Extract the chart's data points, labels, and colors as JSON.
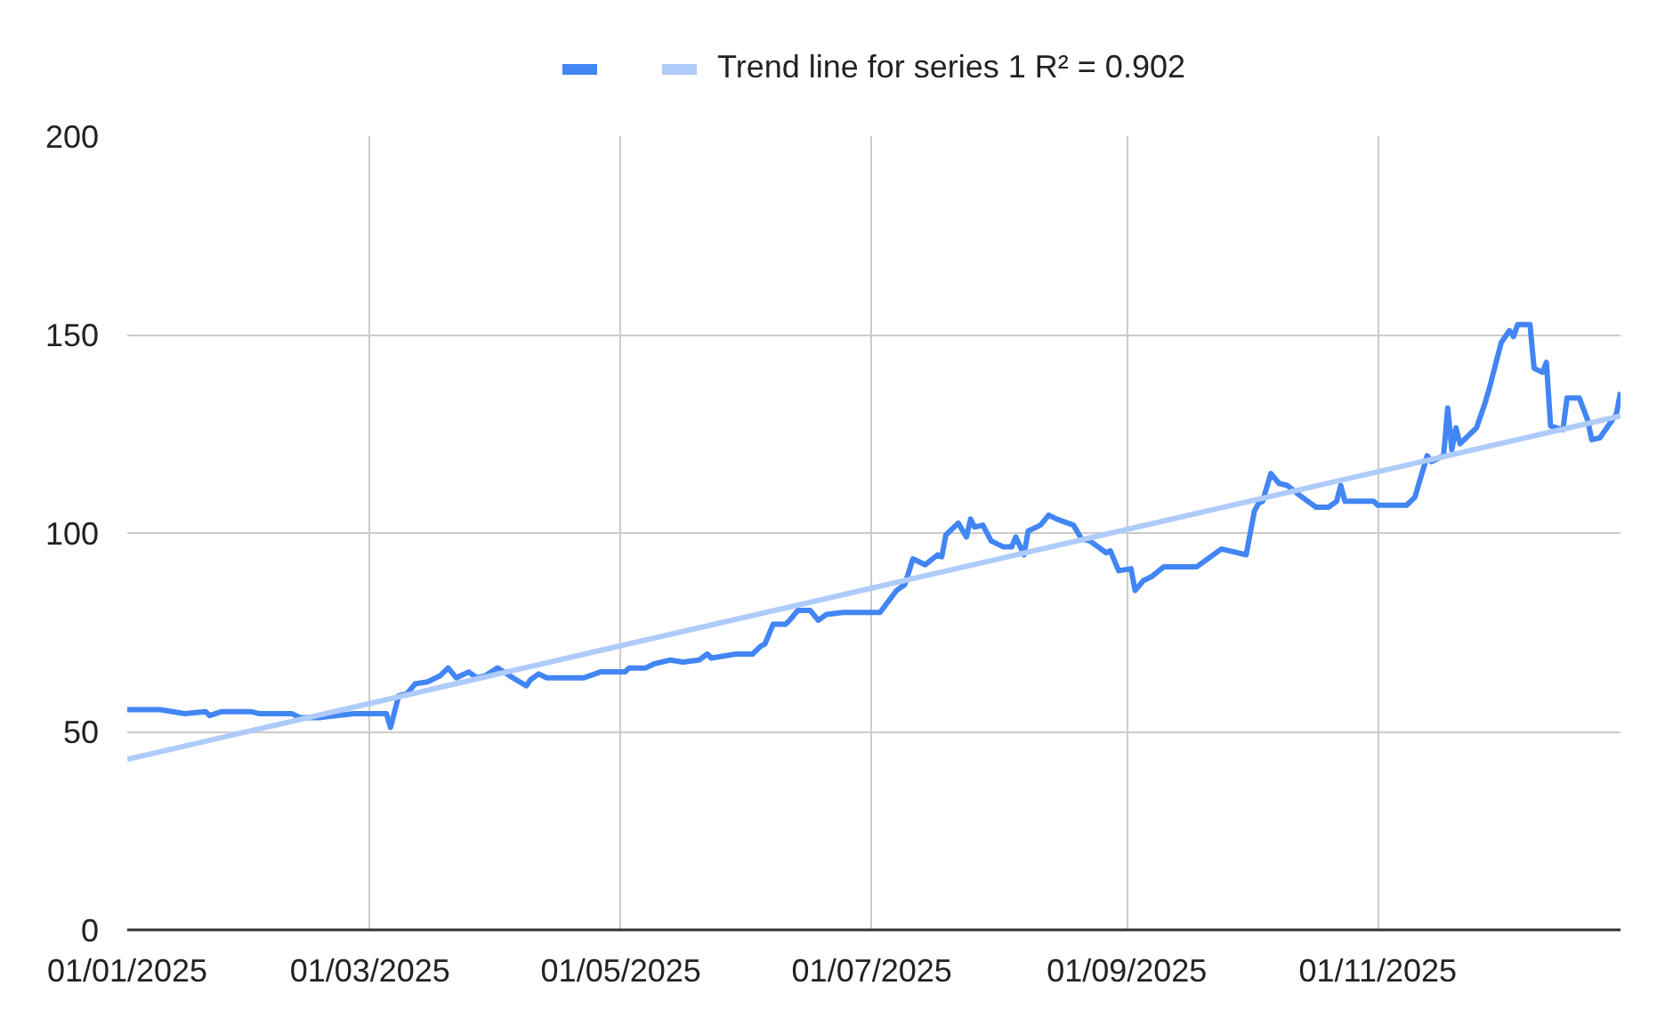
{
  "chart_data": {
    "type": "line",
    "grid": true,
    "legend": "top",
    "line_style": "solid",
    "xlim": [
      "2025-01-01",
      "2025-12-30"
    ],
    "xticks": [
      {
        "value": "2025-01-01",
        "label": "01/01/2025"
      },
      {
        "value": "2025-03-01",
        "label": "01/03/2025"
      },
      {
        "value": "2025-05-01",
        "label": "01/05/2025"
      },
      {
        "value": "2025-07-01",
        "label": "01/07/2025"
      },
      {
        "value": "2025-09-01",
        "label": "01/09/2025"
      },
      {
        "value": "2025-11-01",
        "label": "01/11/2025"
      }
    ],
    "ylim": [
      0,
      200
    ],
    "yticks": [
      0,
      50,
      100,
      150,
      200
    ],
    "x": [
      "2025-01-01",
      "2025-01-09",
      "2025-01-15",
      "2025-01-20",
      "2025-01-21",
      "2025-01-24",
      "2025-01-31",
      "2025-02-02",
      "2025-02-10",
      "2025-02-12",
      "2025-02-17",
      "2025-02-25",
      "2025-03-05",
      "2025-03-06",
      "2025-03-08",
      "2025-03-10",
      "2025-03-12",
      "2025-03-15",
      "2025-03-18",
      "2025-03-20",
      "2025-03-22",
      "2025-03-25",
      "2025-03-27",
      "2025-03-29",
      "2025-04-01",
      "2025-04-04",
      "2025-04-08",
      "2025-04-09",
      "2025-04-11",
      "2025-04-13",
      "2025-04-22",
      "2025-04-26",
      "2025-05-02",
      "2025-05-03",
      "2025-05-07",
      "2025-05-09",
      "2025-05-13",
      "2025-05-16",
      "2025-05-20",
      "2025-05-22",
      "2025-05-23",
      "2025-05-29",
      "2025-06-02",
      "2025-06-04",
      "2025-06-05",
      "2025-06-07",
      "2025-06-10",
      "2025-06-11",
      "2025-06-13",
      "2025-06-16",
      "2025-06-18",
      "2025-06-20",
      "2025-06-24",
      "2025-07-03",
      "2025-07-07",
      "2025-07-09",
      "2025-07-11",
      "2025-07-14",
      "2025-07-17",
      "2025-07-18",
      "2025-07-19",
      "2025-07-22",
      "2025-07-24",
      "2025-07-25",
      "2025-07-26",
      "2025-07-28",
      "2025-07-30",
      "2025-08-02",
      "2025-08-04",
      "2025-08-05",
      "2025-08-07",
      "2025-08-08",
      "2025-08-11",
      "2025-08-13",
      "2025-08-15",
      "2025-08-19",
      "2025-08-21",
      "2025-08-23",
      "2025-08-27",
      "2025-08-28",
      "2025-08-30",
      "2025-09-02",
      "2025-09-03",
      "2025-09-05",
      "2025-09-07",
      "2025-09-10",
      "2025-09-18",
      "2025-09-24",
      "2025-09-30",
      "2025-10-02",
      "2025-10-03",
      "2025-10-04",
      "2025-10-06",
      "2025-10-08",
      "2025-10-10",
      "2025-10-13",
      "2025-10-15",
      "2025-10-17",
      "2025-10-20",
      "2025-10-22",
      "2025-10-23",
      "2025-10-24",
      "2025-10-31",
      "2025-11-01",
      "2025-11-08",
      "2025-11-10",
      "2025-11-13",
      "2025-11-14",
      "2025-11-17",
      "2025-11-18",
      "2025-11-19",
      "2025-11-20",
      "2025-11-21",
      "2025-11-24",
      "2025-11-25",
      "2025-11-27",
      "2025-11-28",
      "2025-12-01",
      "2025-12-03",
      "2025-12-04",
      "2025-12-05",
      "2025-12-08",
      "2025-12-09",
      "2025-12-11",
      "2025-12-12",
      "2025-12-13",
      "2025-12-16",
      "2025-12-17",
      "2025-12-20",
      "2025-12-22",
      "2025-12-23",
      "2025-12-25",
      "2025-12-29",
      "2025-12-30"
    ],
    "series": [
      {
        "color": "#4285f4",
        "values": [
          55.5,
          55.5,
          54.5,
          55,
          54,
          55,
          55,
          54.5,
          54.5,
          53.5,
          53.5,
          54.5,
          54.5,
          51,
          59,
          59.5,
          62,
          62.5,
          64,
          66,
          63.5,
          65,
          63.5,
          64,
          66,
          64,
          61.5,
          63,
          64.5,
          63.5,
          63.5,
          65,
          65,
          66,
          66,
          67,
          68,
          67.5,
          68,
          69.5,
          68.5,
          69.5,
          69.5,
          71.5,
          72,
          77,
          77,
          78,
          80.5,
          80.5,
          78,
          79.5,
          80,
          80,
          85.5,
          87,
          93.5,
          92,
          94.5,
          94,
          99.5,
          102.5,
          99,
          103.5,
          101.5,
          102,
          98,
          96.5,
          96.5,
          99,
          94.5,
          100.5,
          102,
          104.5,
          103.5,
          102,
          98.5,
          98,
          95,
          95.5,
          90.5,
          91,
          85.5,
          88,
          89,
          91.5,
          91.5,
          96,
          94.5,
          105.5,
          107.5,
          108,
          115,
          112.5,
          112,
          109.5,
          108,
          106.5,
          106.5,
          108,
          112,
          108,
          108,
          107,
          107,
          109,
          119.5,
          118,
          119.5,
          131.5,
          121,
          126.5,
          122.5,
          125.5,
          126.5,
          132.5,
          136,
          148,
          151,
          149.5,
          152.5,
          152.5,
          141.5,
          140.5,
          143,
          127,
          126,
          134,
          134,
          128.5,
          123.5,
          124,
          130,
          135.5
        ]
      },
      {
        "name": "Trend line for series 1 R² = 0.902",
        "color": "#aecbfa",
        "type": "line",
        "x": [
          "2025-01-01",
          "2025-12-30"
        ],
        "values": [
          43,
          129.5
        ]
      }
    ]
  }
}
